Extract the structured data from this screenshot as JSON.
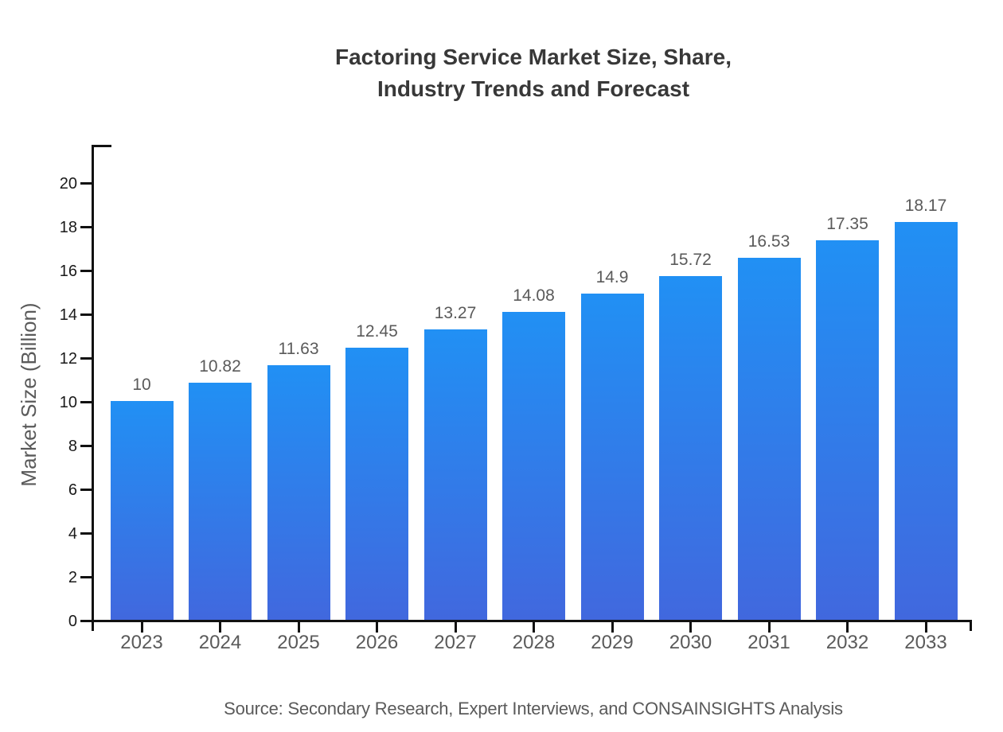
{
  "chart_data": {
    "type": "bar",
    "title_lines": [
      "Factoring Service Market Size, Share,",
      "Industry Trends and Forecast"
    ],
    "categories": [
      "2023",
      "2024",
      "2025",
      "2026",
      "2027",
      "2028",
      "2029",
      "2030",
      "2031",
      "2032",
      "2033"
    ],
    "values": [
      10,
      10.82,
      11.63,
      12.45,
      13.27,
      14.08,
      14.9,
      15.72,
      16.53,
      17.35,
      18.17
    ],
    "value_labels": [
      "10",
      "10.82",
      "11.63",
      "12.45",
      "13.27",
      "14.08",
      "14.9",
      "15.72",
      "16.53",
      "17.35",
      "18.17"
    ],
    "xlabel": "",
    "ylabel": "Market Size (Billion)",
    "ylim": [
      0,
      21.7
    ],
    "y_ticks": [
      0,
      2,
      4,
      6,
      8,
      10,
      12,
      14,
      16,
      18,
      20
    ],
    "grid": false,
    "legend": null
  },
  "footer": {
    "source": "Source: Secondary Research, Expert Interviews, and CONSAINSIGHTS Analysis"
  },
  "colors": {
    "bar_gradient_top": "#2190F4",
    "bar_gradient_bottom": "#4168DE",
    "axis": "#111111",
    "title_text": "#383838",
    "muted_text": "#5a5a5a",
    "tick_text": "#1a1a1a"
  }
}
